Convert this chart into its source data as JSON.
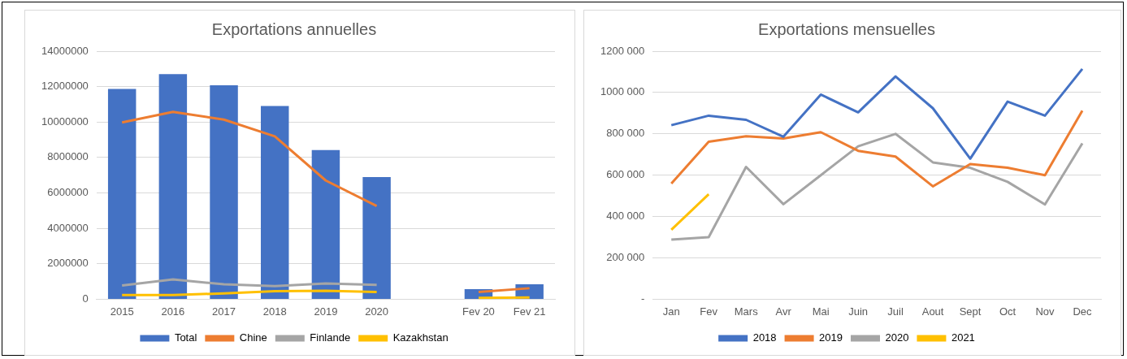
{
  "chart_data": [
    {
      "type": "bar",
      "title": "Exportations annuelles",
      "categories": [
        "2015",
        "2016",
        "2017",
        "2018",
        "2019",
        "2020",
        null,
        "Fev 20",
        "Fev 21"
      ],
      "series": [
        {
          "name": "Total",
          "type": "bar",
          "color": "#4472c4",
          "values": [
            11870000,
            12700000,
            12080000,
            10900000,
            8420000,
            6890000,
            null,
            570000,
            840000
          ]
        },
        {
          "name": "Chine",
          "type": "line",
          "color": "#ed7d31",
          "values": [
            9980000,
            10570000,
            10140000,
            9190000,
            6700000,
            5260000,
            null,
            410000,
            620000
          ]
        },
        {
          "name": "Finlande",
          "type": "line",
          "color": "#a5a5a5",
          "values": [
            770000,
            1120000,
            840000,
            740000,
            890000,
            810000,
            null,
            null,
            null
          ]
        },
        {
          "name": "Kazakhstan",
          "type": "line",
          "color": "#ffc000",
          "values": [
            240000,
            240000,
            330000,
            450000,
            480000,
            410000,
            null,
            70000,
            100000
          ]
        }
      ],
      "ylim": [
        0,
        14000000
      ],
      "yticks": [
        0,
        2000000,
        4000000,
        6000000,
        8000000,
        10000000,
        12000000,
        14000000
      ],
      "grid": "y",
      "legend": "bottom",
      "marker": "none",
      "line_style": "solid"
    },
    {
      "type": "line",
      "title": "Exportations mensuelles",
      "categories": [
        "Jan",
        "Fev",
        "Mars",
        "Avr",
        "Mai",
        "Juin",
        "Juil",
        "Aout",
        "Sept",
        "Oct",
        "Nov",
        "Dec"
      ],
      "series": [
        {
          "name": "2018",
          "color": "#4472c4",
          "values": [
            842000,
            888000,
            868000,
            786000,
            990000,
            904000,
            1078000,
            924000,
            680000,
            956000,
            888000,
            1114000
          ]
        },
        {
          "name": "2019",
          "color": "#ed7d31",
          "values": [
            560000,
            762000,
            788000,
            778000,
            808000,
            718000,
            690000,
            546000,
            654000,
            636000,
            600000,
            912000
          ]
        },
        {
          "name": "2020",
          "color": "#a5a5a5",
          "values": [
            288000,
            300000,
            640000,
            460000,
            600000,
            740000,
            800000,
            662000,
            636000,
            568000,
            458000,
            754000
          ]
        },
        {
          "name": "2021",
          "color": "#ffc000",
          "values": [
            336000,
            508000,
            null,
            null,
            null,
            null,
            null,
            null,
            null,
            null,
            null,
            null
          ]
        }
      ],
      "ylim": [
        0,
        1200000
      ],
      "yticks": [
        {
          "value": 0,
          "label": "-"
        },
        {
          "value": 200000,
          "label": "200 000"
        },
        {
          "value": 400000,
          "label": "400 000"
        },
        {
          "value": 600000,
          "label": "600 000"
        },
        {
          "value": 800000,
          "label": "800 000"
        },
        {
          "value": 1000000,
          "label": "1000 000"
        },
        {
          "value": 1200000,
          "label": "1200 000"
        }
      ],
      "grid": "y",
      "legend": "bottom",
      "marker": "none",
      "line_style": "solid"
    }
  ]
}
